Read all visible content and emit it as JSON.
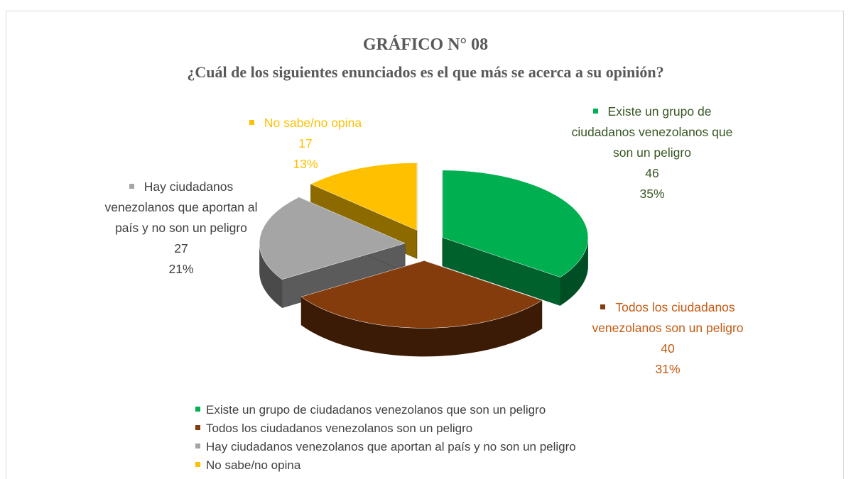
{
  "chart_data": {
    "type": "pie3d",
    "title": "GRÁFICO N° 08",
    "subtitle": "¿Cuál de los siguientes enunciados es el que más se acerca a su opinión?",
    "categories": [
      "Existe un grupo de ciudadanos venezolanos que son un peligro",
      "Todos los ciudadanos venezolanos son un peligro",
      "Hay ciudadanos venezolanos que aportan al país y no son un peligro",
      "No sabe/no opina"
    ],
    "values": [
      35,
      31,
      21,
      13
    ],
    "value_labels": [
      "35%",
      "31%",
      "21%",
      "13%"
    ],
    "counts": [
      46,
      40,
      27,
      17
    ],
    "colors": [
      "#00b050",
      "#843c0c",
      "#a5a5a5",
      "#ffc000"
    ],
    "label_colors": [
      "#375623",
      "#c55a11",
      "#404040",
      "#ffc000"
    ],
    "legend": "bottom"
  }
}
